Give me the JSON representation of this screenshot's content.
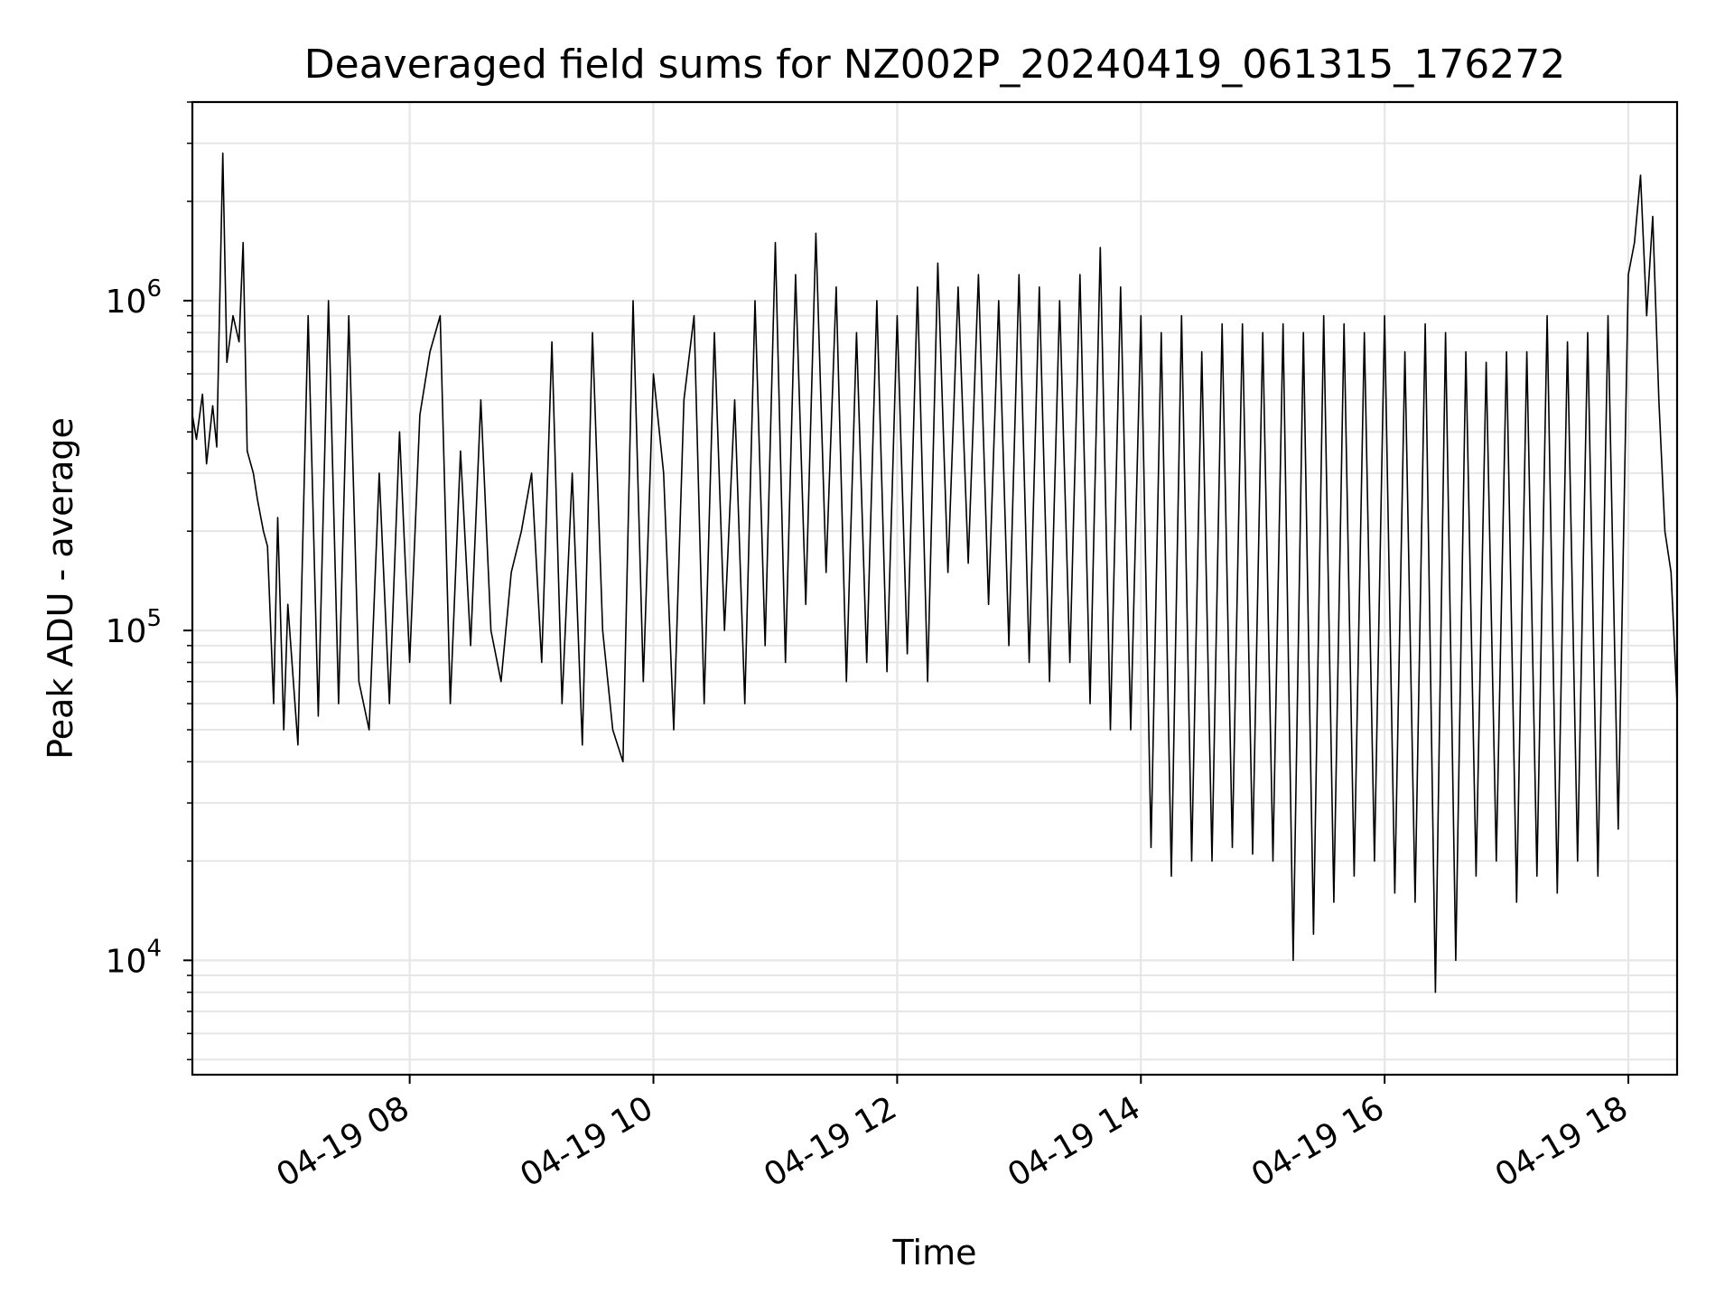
{
  "chart_data": {
    "type": "line",
    "title": "Deaveraged field sums for NZ002P_20240419_061315_176272",
    "xlabel": "Time",
    "ylabel": "Peak ADU - average",
    "yscale": "log",
    "ylim": [
      4500,
      4000000
    ],
    "xlim": [
      "2024-04-19T06:13",
      "2024-04-19T18:24"
    ],
    "grid": true,
    "line_color": "#000000",
    "grid_color": "#e6e6e6",
    "x_ticks": [
      {
        "value": "2024-04-19T08:00",
        "label": "04-19 08"
      },
      {
        "value": "2024-04-19T10:00",
        "label": "04-19 10"
      },
      {
        "value": "2024-04-19T12:00",
        "label": "04-19 12"
      },
      {
        "value": "2024-04-19T14:00",
        "label": "04-19 14"
      },
      {
        "value": "2024-04-19T16:00",
        "label": "04-19 16"
      },
      {
        "value": "2024-04-19T18:00",
        "label": "04-19 18"
      }
    ],
    "y_ticks": [
      {
        "value": 10000,
        "base": "10",
        "exp": "4"
      },
      {
        "value": 100000,
        "base": "10",
        "exp": "5"
      },
      {
        "value": 1000000,
        "base": "10",
        "exp": "6"
      }
    ],
    "series": [
      {
        "x": [
          "2024-04-19T06:13",
          "2024-04-19T06:15",
          "2024-04-19T06:18",
          "2024-04-19T06:20",
          "2024-04-19T06:23",
          "2024-04-19T06:25",
          "2024-04-19T06:28",
          "2024-04-19T06:30",
          "2024-04-19T06:33",
          "2024-04-19T06:36",
          "2024-04-19T06:38",
          "2024-04-19T06:40",
          "2024-04-19T06:43",
          "2024-04-19T06:45",
          "2024-04-19T06:48",
          "2024-04-19T06:50",
          "2024-04-19T06:53",
          "2024-04-19T06:55",
          "2024-04-19T06:58",
          "2024-04-19T07:00",
          "2024-04-19T07:05",
          "2024-04-19T07:10",
          "2024-04-19T07:15",
          "2024-04-19T07:20",
          "2024-04-19T07:25",
          "2024-04-19T07:30",
          "2024-04-19T07:35",
          "2024-04-19T07:40",
          "2024-04-19T07:45",
          "2024-04-19T07:50",
          "2024-04-19T07:55",
          "2024-04-19T08:00",
          "2024-04-19T08:05",
          "2024-04-19T08:10",
          "2024-04-19T08:15",
          "2024-04-19T08:20",
          "2024-04-19T08:25",
          "2024-04-19T08:30",
          "2024-04-19T08:35",
          "2024-04-19T08:40",
          "2024-04-19T08:45",
          "2024-04-19T08:50",
          "2024-04-19T08:55",
          "2024-04-19T09:00",
          "2024-04-19T09:05",
          "2024-04-19T09:10",
          "2024-04-19T09:15",
          "2024-04-19T09:20",
          "2024-04-19T09:25",
          "2024-04-19T09:30",
          "2024-04-19T09:35",
          "2024-04-19T09:40",
          "2024-04-19T09:45",
          "2024-04-19T09:50",
          "2024-04-19T09:55",
          "2024-04-19T10:00",
          "2024-04-19T10:05",
          "2024-04-19T10:10",
          "2024-04-19T10:15",
          "2024-04-19T10:20",
          "2024-04-19T10:25",
          "2024-04-19T10:30",
          "2024-04-19T10:35",
          "2024-04-19T10:40",
          "2024-04-19T10:45",
          "2024-04-19T10:50",
          "2024-04-19T10:55",
          "2024-04-19T11:00",
          "2024-04-19T11:05",
          "2024-04-19T11:10",
          "2024-04-19T11:15",
          "2024-04-19T11:20",
          "2024-04-19T11:25",
          "2024-04-19T11:30",
          "2024-04-19T11:35",
          "2024-04-19T11:40",
          "2024-04-19T11:45",
          "2024-04-19T11:50",
          "2024-04-19T11:55",
          "2024-04-19T12:00",
          "2024-04-19T12:05",
          "2024-04-19T12:10",
          "2024-04-19T12:15",
          "2024-04-19T12:20",
          "2024-04-19T12:25",
          "2024-04-19T12:30",
          "2024-04-19T12:35",
          "2024-04-19T12:40",
          "2024-04-19T12:45",
          "2024-04-19T12:50",
          "2024-04-19T12:55",
          "2024-04-19T13:00",
          "2024-04-19T13:05",
          "2024-04-19T13:10",
          "2024-04-19T13:15",
          "2024-04-19T13:20",
          "2024-04-19T13:25",
          "2024-04-19T13:30",
          "2024-04-19T13:35",
          "2024-04-19T13:40",
          "2024-04-19T13:45",
          "2024-04-19T13:50",
          "2024-04-19T13:55",
          "2024-04-19T14:00",
          "2024-04-19T14:05",
          "2024-04-19T14:10",
          "2024-04-19T14:15",
          "2024-04-19T14:20",
          "2024-04-19T14:25",
          "2024-04-19T14:30",
          "2024-04-19T14:35",
          "2024-04-19T14:40",
          "2024-04-19T14:45",
          "2024-04-19T14:50",
          "2024-04-19T14:55",
          "2024-04-19T15:00",
          "2024-04-19T15:05",
          "2024-04-19T15:10",
          "2024-04-19T15:15",
          "2024-04-19T15:20",
          "2024-04-19T15:25",
          "2024-04-19T15:30",
          "2024-04-19T15:35",
          "2024-04-19T15:40",
          "2024-04-19T15:45",
          "2024-04-19T15:50",
          "2024-04-19T15:55",
          "2024-04-19T16:00",
          "2024-04-19T16:05",
          "2024-04-19T16:10",
          "2024-04-19T16:15",
          "2024-04-19T16:20",
          "2024-04-19T16:25",
          "2024-04-19T16:30",
          "2024-04-19T16:35",
          "2024-04-19T16:40",
          "2024-04-19T16:45",
          "2024-04-19T16:50",
          "2024-04-19T16:55",
          "2024-04-19T17:00",
          "2024-04-19T17:05",
          "2024-04-19T17:10",
          "2024-04-19T17:15",
          "2024-04-19T17:20",
          "2024-04-19T17:25",
          "2024-04-19T17:30",
          "2024-04-19T17:35",
          "2024-04-19T17:40",
          "2024-04-19T17:45",
          "2024-04-19T17:50",
          "2024-04-19T17:55",
          "2024-04-19T18:00",
          "2024-04-19T18:03",
          "2024-04-19T18:06",
          "2024-04-19T18:09",
          "2024-04-19T18:12",
          "2024-04-19T18:15",
          "2024-04-19T18:18",
          "2024-04-19T18:21",
          "2024-04-19T18:24"
        ],
        "y": [
          450000,
          380000,
          520000,
          320000,
          480000,
          360000,
          2800000,
          650000,
          900000,
          750000,
          1500000,
          350000,
          300000,
          250000,
          200000,
          180000,
          60000,
          220000,
          50000,
          120000,
          45000,
          900000,
          55000,
          1000000,
          60000,
          900000,
          70000,
          50000,
          300000,
          60000,
          400000,
          80000,
          450000,
          700000,
          900000,
          60000,
          350000,
          90000,
          500000,
          100000,
          70000,
          150000,
          200000,
          300000,
          80000,
          750000,
          60000,
          300000,
          45000,
          800000,
          100000,
          50000,
          40000,
          1000000,
          70000,
          600000,
          300000,
          50000,
          500000,
          900000,
          60000,
          800000,
          100000,
          500000,
          60000,
          1000000,
          90000,
          1500000,
          80000,
          1200000,
          120000,
          1600000,
          150000,
          1100000,
          70000,
          800000,
          80000,
          1000000,
          75000,
          900000,
          85000,
          1100000,
          70000,
          1300000,
          150000,
          1100000,
          160000,
          1200000,
          120000,
          1000000,
          90000,
          1200000,
          80000,
          1100000,
          70000,
          1000000,
          80000,
          1200000,
          60000,
          1450000,
          50000,
          1100000,
          50000,
          900000,
          22000,
          800000,
          18000,
          900000,
          20000,
          700000,
          20000,
          850000,
          22000,
          850000,
          21000,
          800000,
          20000,
          850000,
          10000,
          800000,
          12000,
          900000,
          15000,
          850000,
          18000,
          800000,
          20000,
          900000,
          16000,
          700000,
          15000,
          850000,
          8000,
          800000,
          10000,
          700000,
          18000,
          650000,
          20000,
          700000,
          15000,
          700000,
          18000,
          900000,
          16000,
          750000,
          20000,
          800000,
          18000,
          900000,
          25000,
          1200000,
          1500000,
          2400000,
          900000,
          1800000,
          500000,
          200000,
          150000,
          60000
        ]
      }
    ]
  }
}
